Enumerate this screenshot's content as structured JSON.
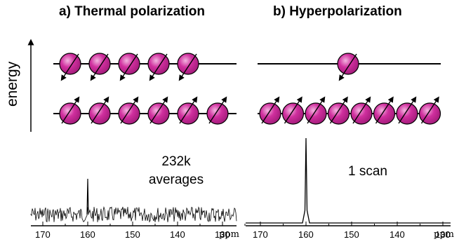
{
  "panels": [
    {
      "title": "a) Thermal polarization",
      "annotation_line1": "232k",
      "annotation_line2": "averages",
      "upper_level_spins": 5,
      "lower_level_spins": 6,
      "ticks": [
        "170",
        "160",
        "150",
        "140",
        "130"
      ],
      "unit": "ppm"
    },
    {
      "title": "b) Hyperpolarization",
      "annotation": "1 scan",
      "upper_level_spins": 1,
      "lower_level_spins": 8,
      "ticks": [
        "170",
        "160",
        "150",
        "140",
        "130"
      ],
      "unit": "ppm"
    }
  ],
  "axis_label": "energy",
  "colors": {
    "spin_fill": "#d02f9e",
    "spin_highlight": "#f3b6e0",
    "line": "#000000"
  },
  "spectrum_peak_ppm": 160
}
